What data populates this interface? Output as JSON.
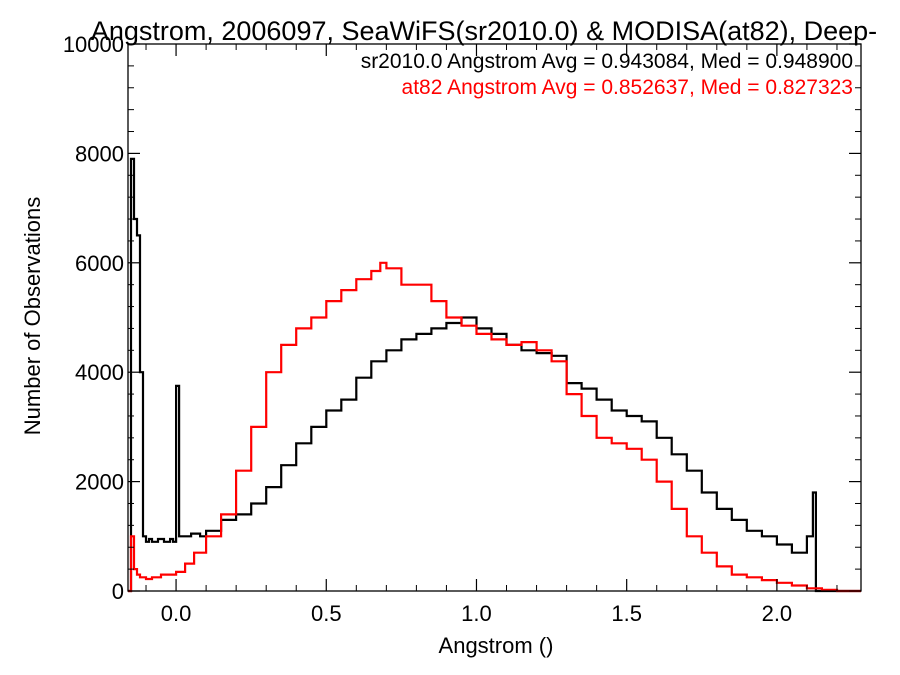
{
  "chart_data": {
    "type": "line",
    "title": "Angstrom, 2006097, SeaWiFS(sr2010.0) & MODISA(at82), Deep-",
    "xlabel": "Angstrom ()",
    "ylabel": "Number of Observations",
    "xlim": [
      -0.16,
      2.28
    ],
    "ylim": [
      0,
      10000
    ],
    "x_ticks": [
      0.0,
      0.5,
      1.0,
      1.5,
      2.0
    ],
    "x_tick_labels": [
      "0.0",
      "0.5",
      "1.0",
      "1.5",
      "2.0"
    ],
    "y_ticks": [
      0,
      2000,
      4000,
      6000,
      8000,
      10000
    ],
    "y_tick_labels": [
      "0",
      "2000",
      "4000",
      "6000",
      "8000",
      "10000"
    ],
    "legend_placement": "top-right",
    "annotations": [
      {
        "text": "sr2010.0 Angstrom Avg = 0.943084, Med = 0.948900",
        "color": "#000000"
      },
      {
        "text": "at82 Angstrom Avg = 0.852637, Med = 0.827323",
        "color": "#ff0000"
      }
    ],
    "series": [
      {
        "color": "#000000",
        "step": true,
        "x": [
          -0.16,
          -0.15,
          -0.14,
          -0.13,
          -0.12,
          -0.11,
          -0.1,
          -0.09,
          -0.08,
          -0.06,
          -0.04,
          -0.02,
          -0.01,
          0.0,
          0.01,
          0.02,
          0.03,
          0.05,
          0.08,
          0.1,
          0.15,
          0.2,
          0.25,
          0.3,
          0.35,
          0.4,
          0.45,
          0.5,
          0.55,
          0.6,
          0.65,
          0.7,
          0.75,
          0.8,
          0.85,
          0.9,
          0.95,
          1.0,
          1.05,
          1.1,
          1.15,
          1.2,
          1.25,
          1.3,
          1.35,
          1.4,
          1.45,
          1.5,
          1.55,
          1.6,
          1.65,
          1.7,
          1.75,
          1.8,
          1.85,
          1.9,
          1.95,
          2.0,
          2.05,
          2.1,
          2.12,
          2.13,
          2.14,
          2.15,
          2.2,
          2.28
        ],
        "y": [
          0,
          7900,
          6800,
          6500,
          4000,
          1000,
          900,
          950,
          900,
          950,
          900,
          950,
          900,
          3750,
          1000,
          1000,
          1000,
          1050,
          1000,
          1100,
          1300,
          1400,
          1600,
          1900,
          2300,
          2700,
          3000,
          3300,
          3500,
          3900,
          4200,
          4400,
          4600,
          4700,
          4800,
          4900,
          5000,
          4800,
          4700,
          4500,
          4400,
          4350,
          4300,
          3800,
          3700,
          3500,
          3300,
          3200,
          3100,
          2800,
          2500,
          2200,
          1800,
          1500,
          1300,
          1100,
          1000,
          850,
          700,
          1000,
          1800,
          0,
          0,
          0,
          0,
          0
        ]
      },
      {
        "color": "#ff0000",
        "step": true,
        "x": [
          -0.16,
          -0.15,
          -0.14,
          -0.13,
          -0.12,
          -0.1,
          -0.08,
          -0.05,
          -0.02,
          0.0,
          0.03,
          0.06,
          0.1,
          0.15,
          0.2,
          0.25,
          0.3,
          0.35,
          0.4,
          0.45,
          0.5,
          0.55,
          0.6,
          0.65,
          0.68,
          0.7,
          0.75,
          0.8,
          0.85,
          0.9,
          0.95,
          1.0,
          1.05,
          1.1,
          1.15,
          1.2,
          1.25,
          1.3,
          1.35,
          1.4,
          1.45,
          1.5,
          1.55,
          1.6,
          1.65,
          1.7,
          1.75,
          1.8,
          1.85,
          1.9,
          1.95,
          2.0,
          2.05,
          2.1,
          2.15,
          2.2,
          2.28
        ],
        "y": [
          0,
          1000,
          400,
          300,
          250,
          220,
          250,
          300,
          300,
          350,
          500,
          700,
          1000,
          1400,
          2200,
          3000,
          4000,
          4500,
          4800,
          5000,
          5300,
          5500,
          5700,
          5850,
          6000,
          5900,
          5600,
          5600,
          5300,
          5000,
          4850,
          4700,
          4600,
          4500,
          4550,
          4400,
          4200,
          3600,
          3200,
          2800,
          2700,
          2600,
          2400,
          2000,
          1500,
          1000,
          700,
          450,
          300,
          250,
          200,
          150,
          100,
          50,
          20,
          0,
          0
        ]
      }
    ]
  }
}
